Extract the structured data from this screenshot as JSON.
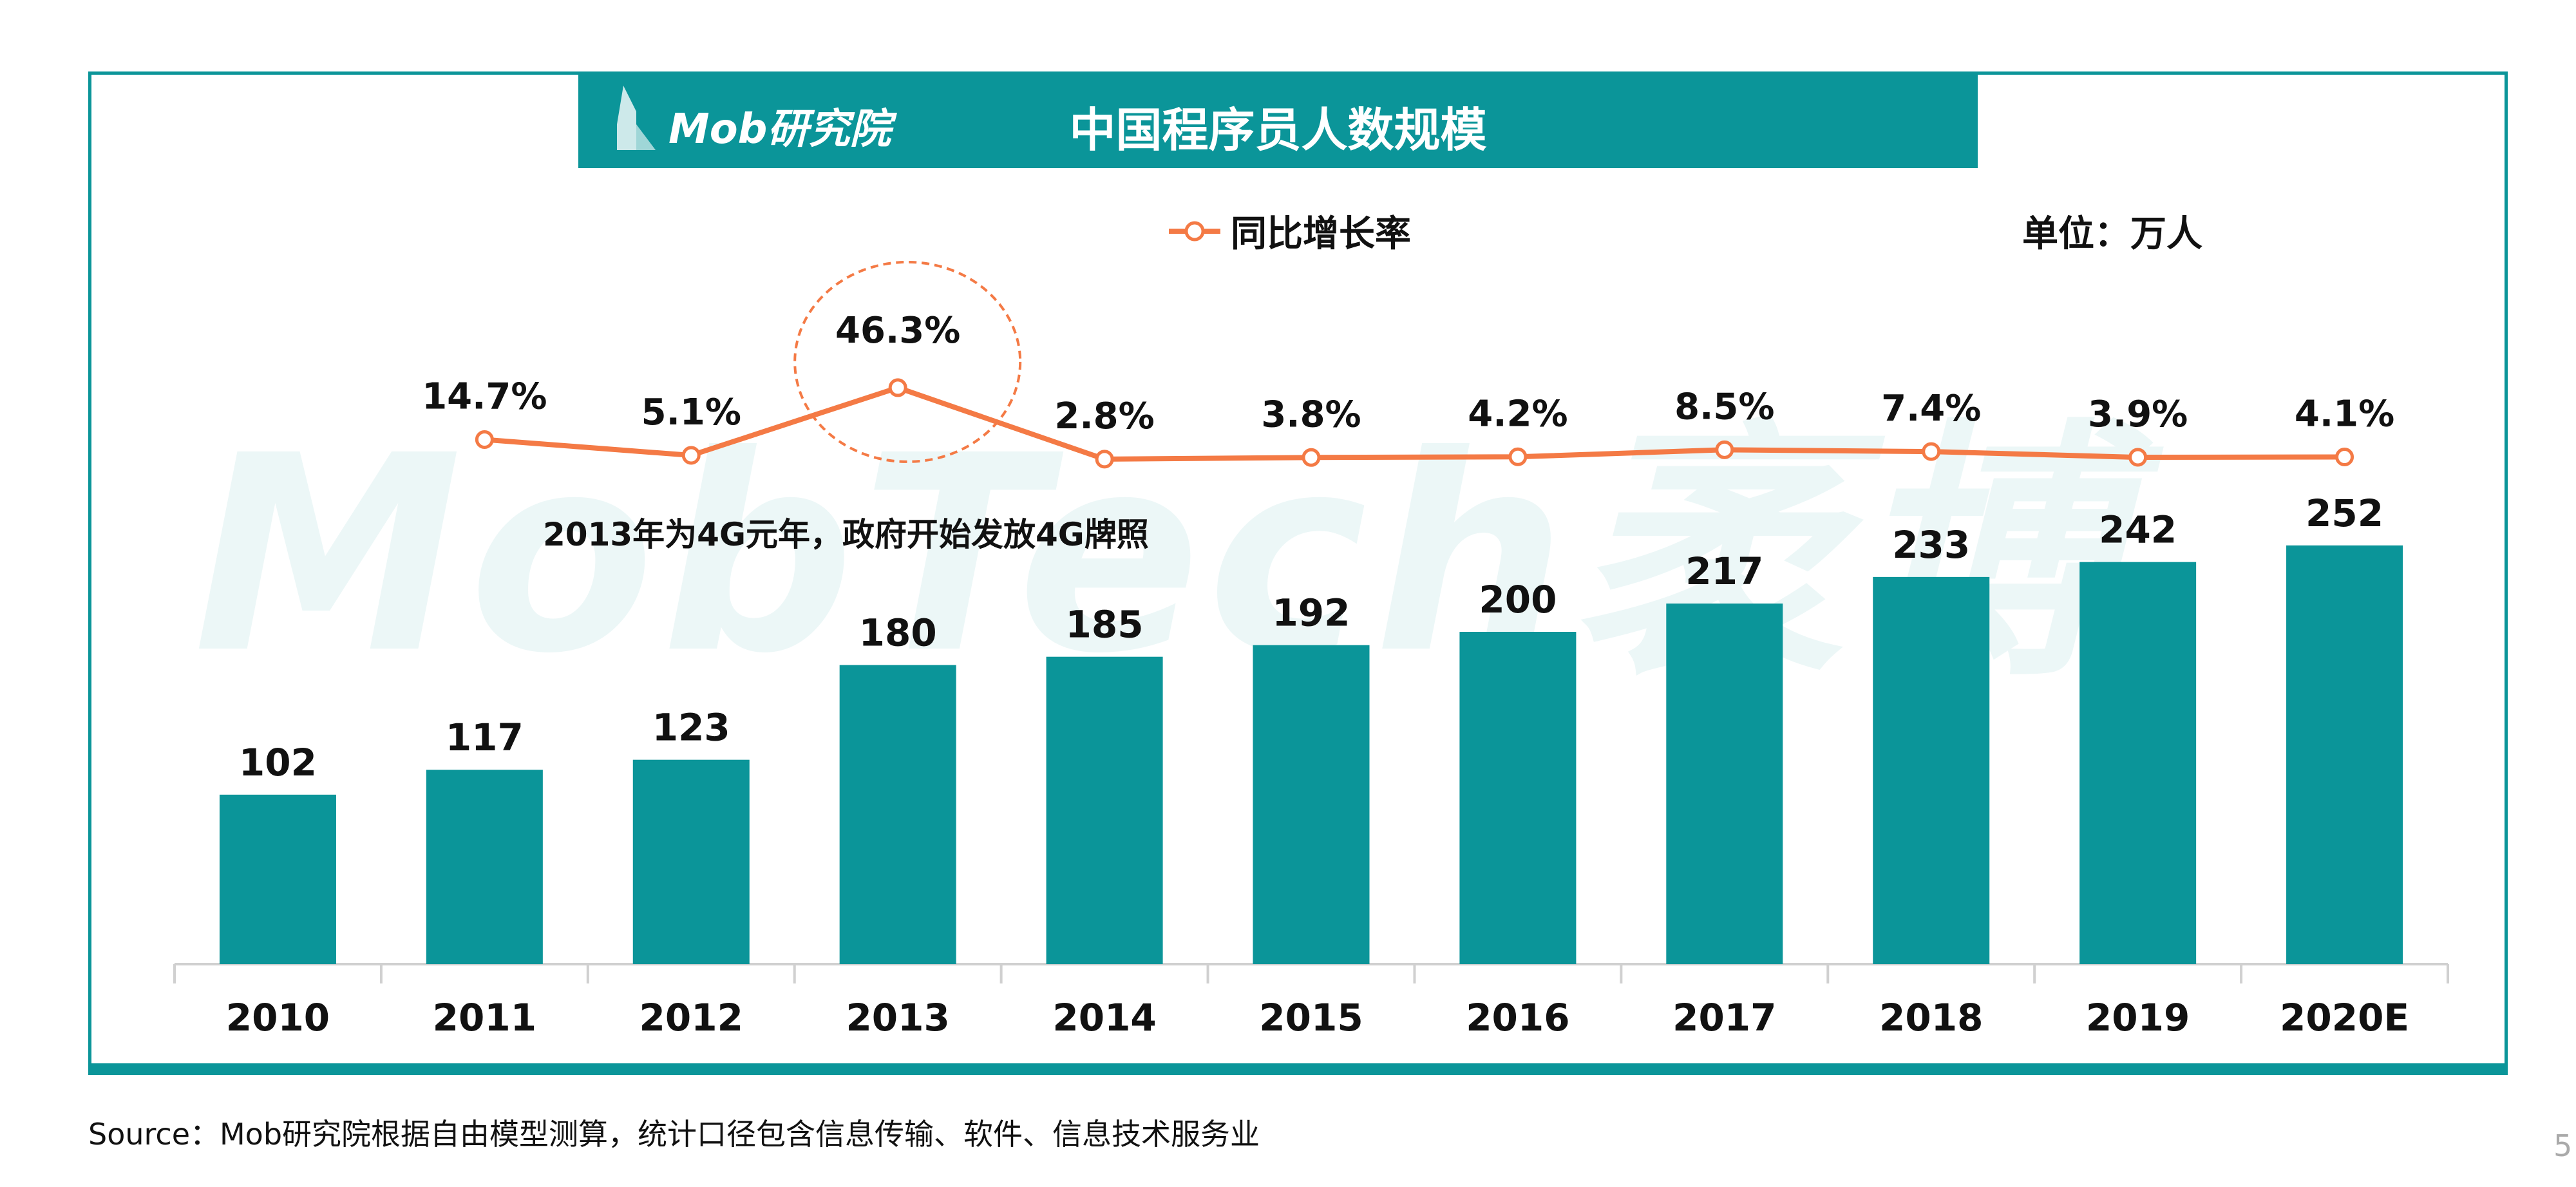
{
  "header": {
    "logo_text": "Mob研究院",
    "title": "中国程序员人数规模"
  },
  "legend": {
    "line_label": "同比增长率"
  },
  "unit_label": "单位：万人",
  "annotation": "2013年为4G元年，政府开始发放4G牌照",
  "watermark": "MobTech袤博",
  "source": "Source：Mob研究院根据自由模型测算，统计口径包含信息传输、软件、信息技术服务业",
  "page_number": "5",
  "colors": {
    "bar": "#0b9599",
    "line": "#f47a45",
    "frame": "#0b9599"
  },
  "chart_data": {
    "type": "bar+line",
    "categories": [
      "2010",
      "2011",
      "2012",
      "2013",
      "2014",
      "2015",
      "2016",
      "2017",
      "2018",
      "2019",
      "2020E"
    ],
    "bars": {
      "values": [
        102,
        117,
        123,
        180,
        185,
        192,
        200,
        217,
        233,
        242,
        252
      ],
      "labels": [
        "102",
        "117",
        "123",
        "180",
        "185",
        "192",
        "200",
        "217",
        "233",
        "242",
        "252"
      ]
    },
    "line": {
      "name": "同比增长率",
      "values": [
        null,
        14.7,
        5.1,
        46.3,
        2.8,
        3.8,
        4.2,
        8.5,
        7.4,
        3.9,
        4.1
      ],
      "labels": [
        "",
        "14.7%",
        "5.1%",
        "46.3%",
        "2.8%",
        "3.8%",
        "4.2%",
        "8.5%",
        "7.4%",
        "3.9%",
        "4.1%"
      ]
    },
    "highlight": "2013",
    "grid": false,
    "legend_position": "top"
  }
}
